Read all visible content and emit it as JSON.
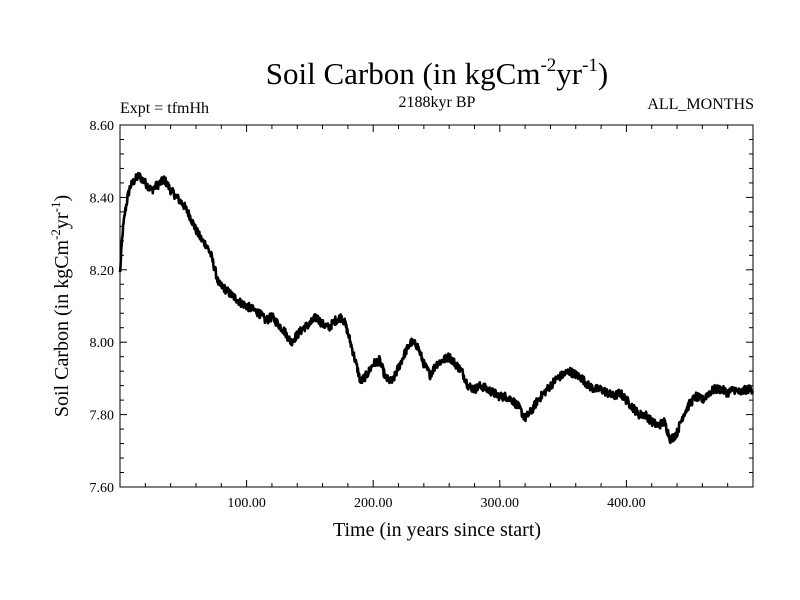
{
  "chart_data": {
    "type": "line",
    "title": {
      "main": "Soil Carbon (in kgCm",
      "sup1": "-2",
      "mid": "yr",
      "sup2": "-1",
      "end": ")"
    },
    "subtitle_left": "Expt = tfmHh",
    "subtitle_center": "2188kyr BP",
    "subtitle_right": "ALL_MONTHS",
    "xlabel": "Time (in years since start)",
    "ylabel": {
      "main": "Soil Carbon (in kgCm",
      "sup1": "-2",
      "mid": "yr",
      "sup2": "-1",
      "end": ")"
    },
    "xlim": [
      0,
      500
    ],
    "ylim": [
      7.6,
      8.6
    ],
    "xticks": [
      100,
      200,
      300,
      400
    ],
    "xtick_labels": [
      "100.00",
      "200.00",
      "300.00",
      "400.00"
    ],
    "yticks": [
      7.6,
      7.8,
      8.0,
      8.2,
      8.4,
      8.6
    ],
    "ytick_labels": [
      "7.60",
      "7.80",
      "8.00",
      "8.20",
      "8.40",
      "8.60"
    ],
    "line_color": "#000000",
    "series": [
      {
        "name": "Soil Carbon",
        "x": [
          0,
          2,
          4,
          6,
          8,
          12,
          15,
          20,
          25,
          28,
          32,
          35,
          40,
          45,
          50,
          55,
          60,
          65,
          68,
          72,
          75,
          78,
          82,
          85,
          88,
          92,
          95,
          100,
          105,
          110,
          115,
          120,
          125,
          130,
          135,
          140,
          145,
          150,
          155,
          160,
          165,
          170,
          175,
          178,
          182,
          185,
          188,
          190,
          195,
          200,
          205,
          210,
          215,
          220,
          225,
          230,
          235,
          240,
          245,
          250,
          255,
          260,
          265,
          270,
          275,
          280,
          285,
          290,
          295,
          300,
          305,
          310,
          315,
          320,
          325,
          330,
          335,
          340,
          345,
          350,
          355,
          360,
          365,
          370,
          375,
          380,
          385,
          390,
          395,
          400,
          405,
          410,
          415,
          420,
          425,
          430,
          435,
          440,
          445,
          450,
          455,
          460,
          465,
          470,
          475,
          480,
          485,
          490,
          495,
          500
        ],
        "values": [
          8.19,
          8.3,
          8.36,
          8.4,
          8.43,
          8.45,
          8.46,
          8.44,
          8.42,
          8.43,
          8.44,
          8.45,
          8.42,
          8.4,
          8.38,
          8.35,
          8.31,
          8.28,
          8.27,
          8.24,
          8.2,
          8.16,
          8.15,
          8.14,
          8.13,
          8.12,
          8.11,
          8.1,
          8.09,
          8.08,
          8.06,
          8.07,
          8.05,
          8.03,
          8.0,
          8.02,
          8.04,
          8.05,
          8.07,
          8.05,
          8.04,
          8.06,
          8.07,
          8.05,
          8.0,
          7.96,
          7.92,
          7.89,
          7.91,
          7.94,
          7.95,
          7.9,
          7.89,
          7.93,
          7.97,
          8.0,
          7.99,
          7.94,
          7.91,
          7.94,
          7.95,
          7.96,
          7.94,
          7.92,
          7.88,
          7.87,
          7.88,
          7.87,
          7.86,
          7.85,
          7.85,
          7.84,
          7.82,
          7.79,
          7.81,
          7.84,
          7.86,
          7.88,
          7.9,
          7.91,
          7.92,
          7.91,
          7.9,
          7.88,
          7.87,
          7.87,
          7.86,
          7.85,
          7.86,
          7.84,
          7.82,
          7.8,
          7.8,
          7.78,
          7.77,
          7.78,
          7.73,
          7.75,
          7.8,
          7.83,
          7.85,
          7.84,
          7.86,
          7.87,
          7.87,
          7.86,
          7.87,
          7.86,
          7.87,
          7.87
        ]
      }
    ]
  }
}
